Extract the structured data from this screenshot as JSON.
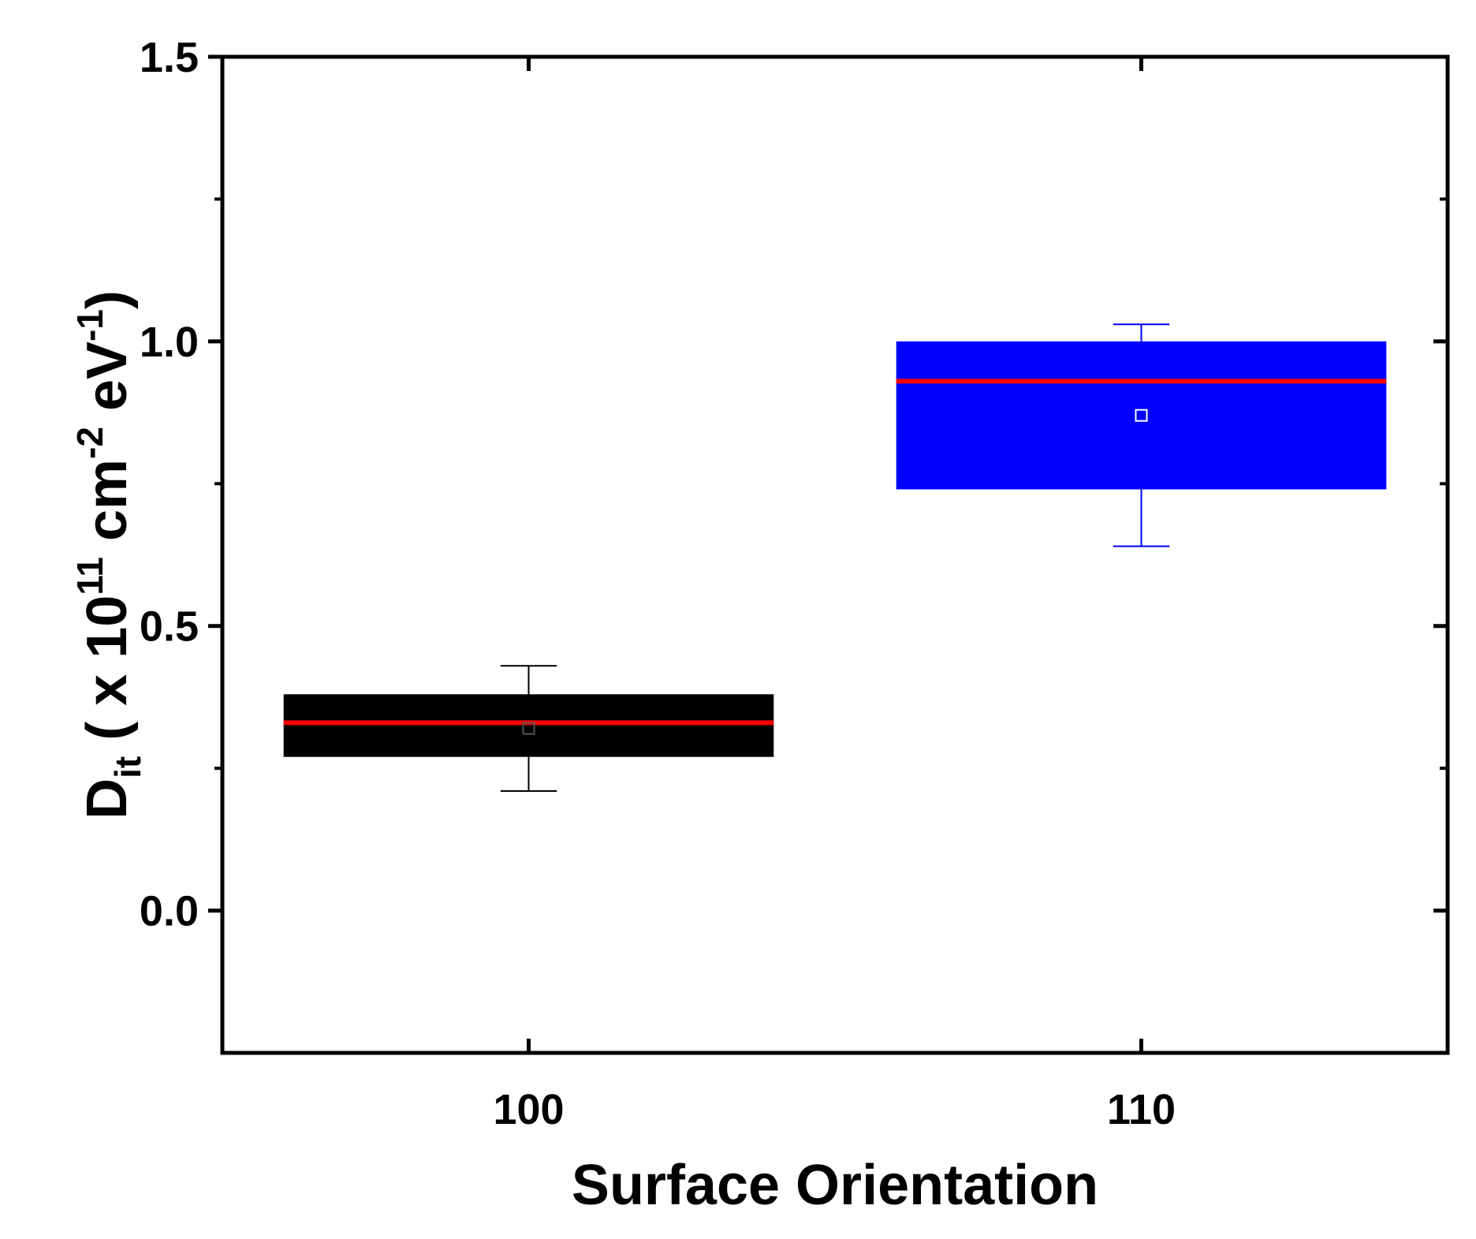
{
  "chart_data": {
    "type": "box",
    "xlabel": "Surface Orientation",
    "ylabel": {
      "parts": [
        {
          "text": "D",
          "role": "base"
        },
        {
          "text": "it",
          "role": "sub"
        },
        {
          "text": " ( x 10",
          "role": "base"
        },
        {
          "text": "11",
          "role": "sup"
        },
        {
          "text": " cm",
          "role": "base"
        },
        {
          "text": "-2",
          "role": "sup"
        },
        {
          "text": " eV",
          "role": "base"
        },
        {
          "text": "-1",
          "role": "sup"
        },
        {
          "text": ")",
          "role": "base"
        }
      ]
    },
    "ylim": [
      -0.25,
      1.5
    ],
    "yticks": [
      0.0,
      0.5,
      1.0,
      1.5
    ],
    "ytick_labels": [
      "0.0",
      "0.5",
      "1.0",
      "1.5"
    ],
    "categories": [
      "100",
      "110"
    ],
    "boxes": [
      {
        "category": "100",
        "q1": 0.27,
        "q3": 0.38,
        "median": 0.33,
        "mean": 0.32,
        "whisker_low": 0.21,
        "whisker_high": 0.43,
        "color": "#000000"
      },
      {
        "category": "110",
        "q1": 0.74,
        "q3": 1.0,
        "median": 0.93,
        "mean": 0.87,
        "whisker_low": 0.64,
        "whisker_high": 1.03,
        "color": "#0000ff"
      }
    ],
    "median_color": "#ff0000",
    "grid": false
  }
}
